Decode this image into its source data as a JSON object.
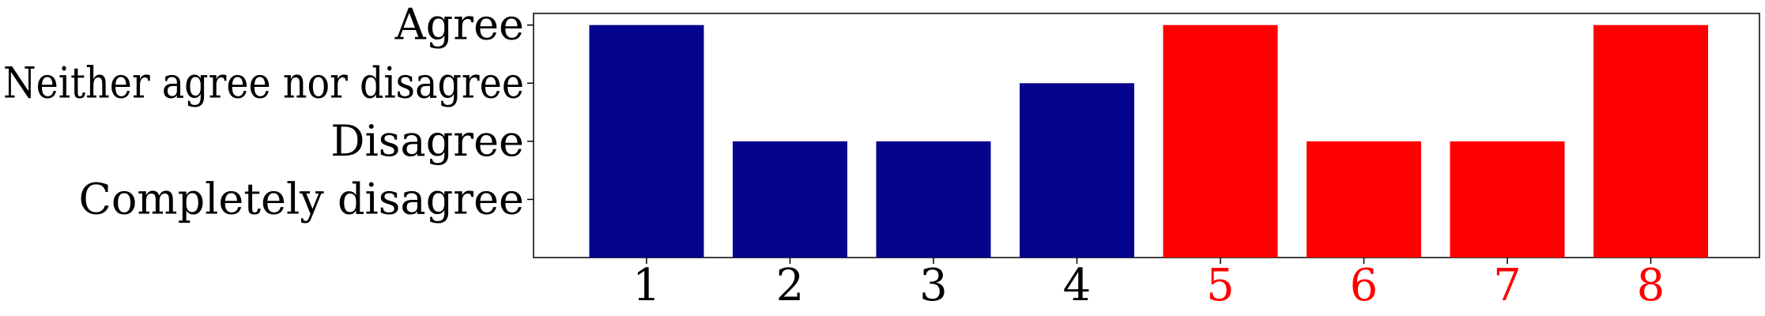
{
  "chart_data": {
    "type": "bar",
    "categories": [
      "1",
      "2",
      "3",
      "4",
      "5",
      "6",
      "7",
      "8"
    ],
    "values": [
      4,
      2,
      2,
      3,
      4,
      2,
      2,
      4
    ],
    "y_tick_values": [
      1,
      2,
      3,
      4
    ],
    "y_tick_labels": [
      "Completely disagree",
      "Disagree",
      "Neither agree nor disagree",
      "Agree"
    ],
    "ylim": [
      0,
      4.2
    ],
    "grid": false,
    "legend": "none",
    "colors": [
      "#06038c",
      "#06038c",
      "#06038c",
      "#06038c",
      "#ff0000",
      "#ff0000",
      "#ff0000",
      "#ff0000"
    ],
    "tick_label_colors": [
      "#000000",
      "#000000",
      "#000000",
      "#000000",
      "#ff0000",
      "#ff0000",
      "#ff0000",
      "#ff0000"
    ]
  }
}
